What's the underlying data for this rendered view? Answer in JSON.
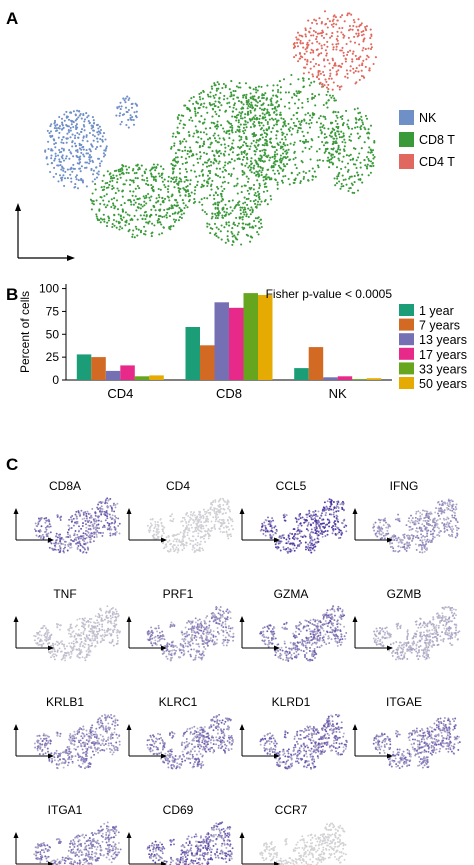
{
  "panels": {
    "a": "A",
    "b": "B",
    "c": "C"
  },
  "umap_legend": [
    {
      "name": "NK",
      "color": "#6f8fc7"
    },
    {
      "name": "CD8 T",
      "color": "#3a9a3a"
    },
    {
      "name": "CD4 T",
      "color": "#e0685e"
    }
  ],
  "chart_data": [
    {
      "type": "bar",
      "categories": [
        "CD4",
        "CD8",
        "NK"
      ],
      "series": [
        {
          "name": "1 year",
          "color": "#1b9e77",
          "values": [
            28,
            58,
            13
          ]
        },
        {
          "name": "7 years",
          "color": "#d26a24",
          "values": [
            25,
            38,
            36
          ]
        },
        {
          "name": "13 years",
          "color": "#7570b3",
          "values": [
            10,
            85,
            3
          ]
        },
        {
          "name": "17 years",
          "color": "#e7298a",
          "values": [
            16,
            79,
            4
          ]
        },
        {
          "name": "33 years",
          "color": "#66a61e",
          "values": [
            4,
            95,
            1
          ]
        },
        {
          "name": "50 years",
          "color": "#e6ab02",
          "values": [
            5,
            93,
            2
          ]
        }
      ],
      "ylabel": "Percent of cells",
      "yticks": [
        0,
        25,
        50,
        75,
        100
      ],
      "ylim": [
        0,
        105
      ],
      "annotation": "Fisher p-value < 0.0005",
      "legend_position": "right"
    }
  ],
  "feature_plots": [
    {
      "gene": "CD8A",
      "intensity": 0.6
    },
    {
      "gene": "CD4",
      "intensity": 0.05
    },
    {
      "gene": "CCL5",
      "intensity": 0.85
    },
    {
      "gene": "IFNG",
      "intensity": 0.4
    },
    {
      "gene": "TNF",
      "intensity": 0.15
    },
    {
      "gene": "PRF1",
      "intensity": 0.45
    },
    {
      "gene": "GZMA",
      "intensity": 0.55
    },
    {
      "gene": "GZMB",
      "intensity": 0.25
    },
    {
      "gene": "KRLB1",
      "intensity": 0.5
    },
    {
      "gene": "KLRC1",
      "intensity": 0.55
    },
    {
      "gene": "KLRD1",
      "intensity": 0.6
    },
    {
      "gene": "ITGAE",
      "intensity": 0.55
    },
    {
      "gene": "ITGA1",
      "intensity": 0.5
    },
    {
      "gene": "CD69",
      "intensity": 0.65
    },
    {
      "gene": "CCR7",
      "intensity": 0.03
    }
  ]
}
